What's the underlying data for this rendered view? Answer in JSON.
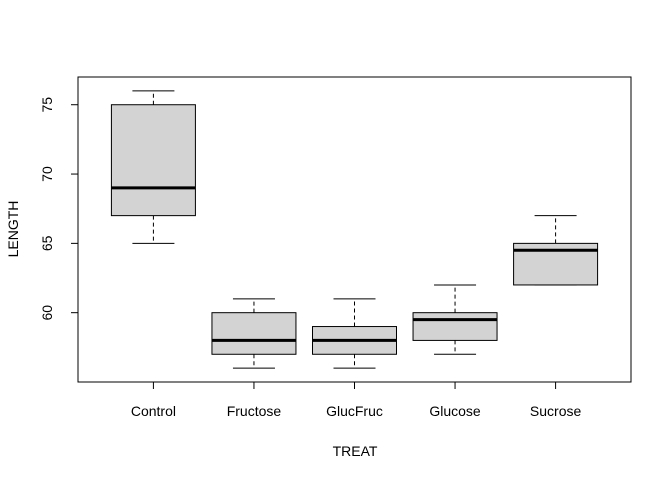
{
  "chart_data": {
    "type": "boxplot",
    "title": "",
    "xlabel": "TREAT",
    "ylabel": "LENGTH",
    "ylim": [
      55.0,
      77.0
    ],
    "yticks": [
      60,
      65,
      70,
      75
    ],
    "categories": [
      "Control",
      "Fructose",
      "GlucFruc",
      "Glucose",
      "Sucrose"
    ],
    "boxes": [
      {
        "category": "Control",
        "whisker_low": 65,
        "q1": 67,
        "median": 69,
        "q3": 75,
        "whisker_high": 76
      },
      {
        "category": "Fructose",
        "whisker_low": 56,
        "q1": 57,
        "median": 58,
        "q3": 60,
        "whisker_high": 61
      },
      {
        "category": "GlucFruc",
        "whisker_low": 56,
        "q1": 57,
        "median": 58,
        "q3": 59,
        "whisker_high": 61
      },
      {
        "category": "Glucose",
        "whisker_low": 57,
        "q1": 58,
        "median": 59.5,
        "q3": 60,
        "whisker_high": 62
      },
      {
        "category": "Sucrose",
        "whisker_low": 62,
        "q1": 62,
        "median": 64.5,
        "q3": 65,
        "whisker_high": 67
      }
    ],
    "box_fill": "#d3d3d3",
    "line_color": "#000000",
    "grid": false,
    "legend": "none"
  }
}
